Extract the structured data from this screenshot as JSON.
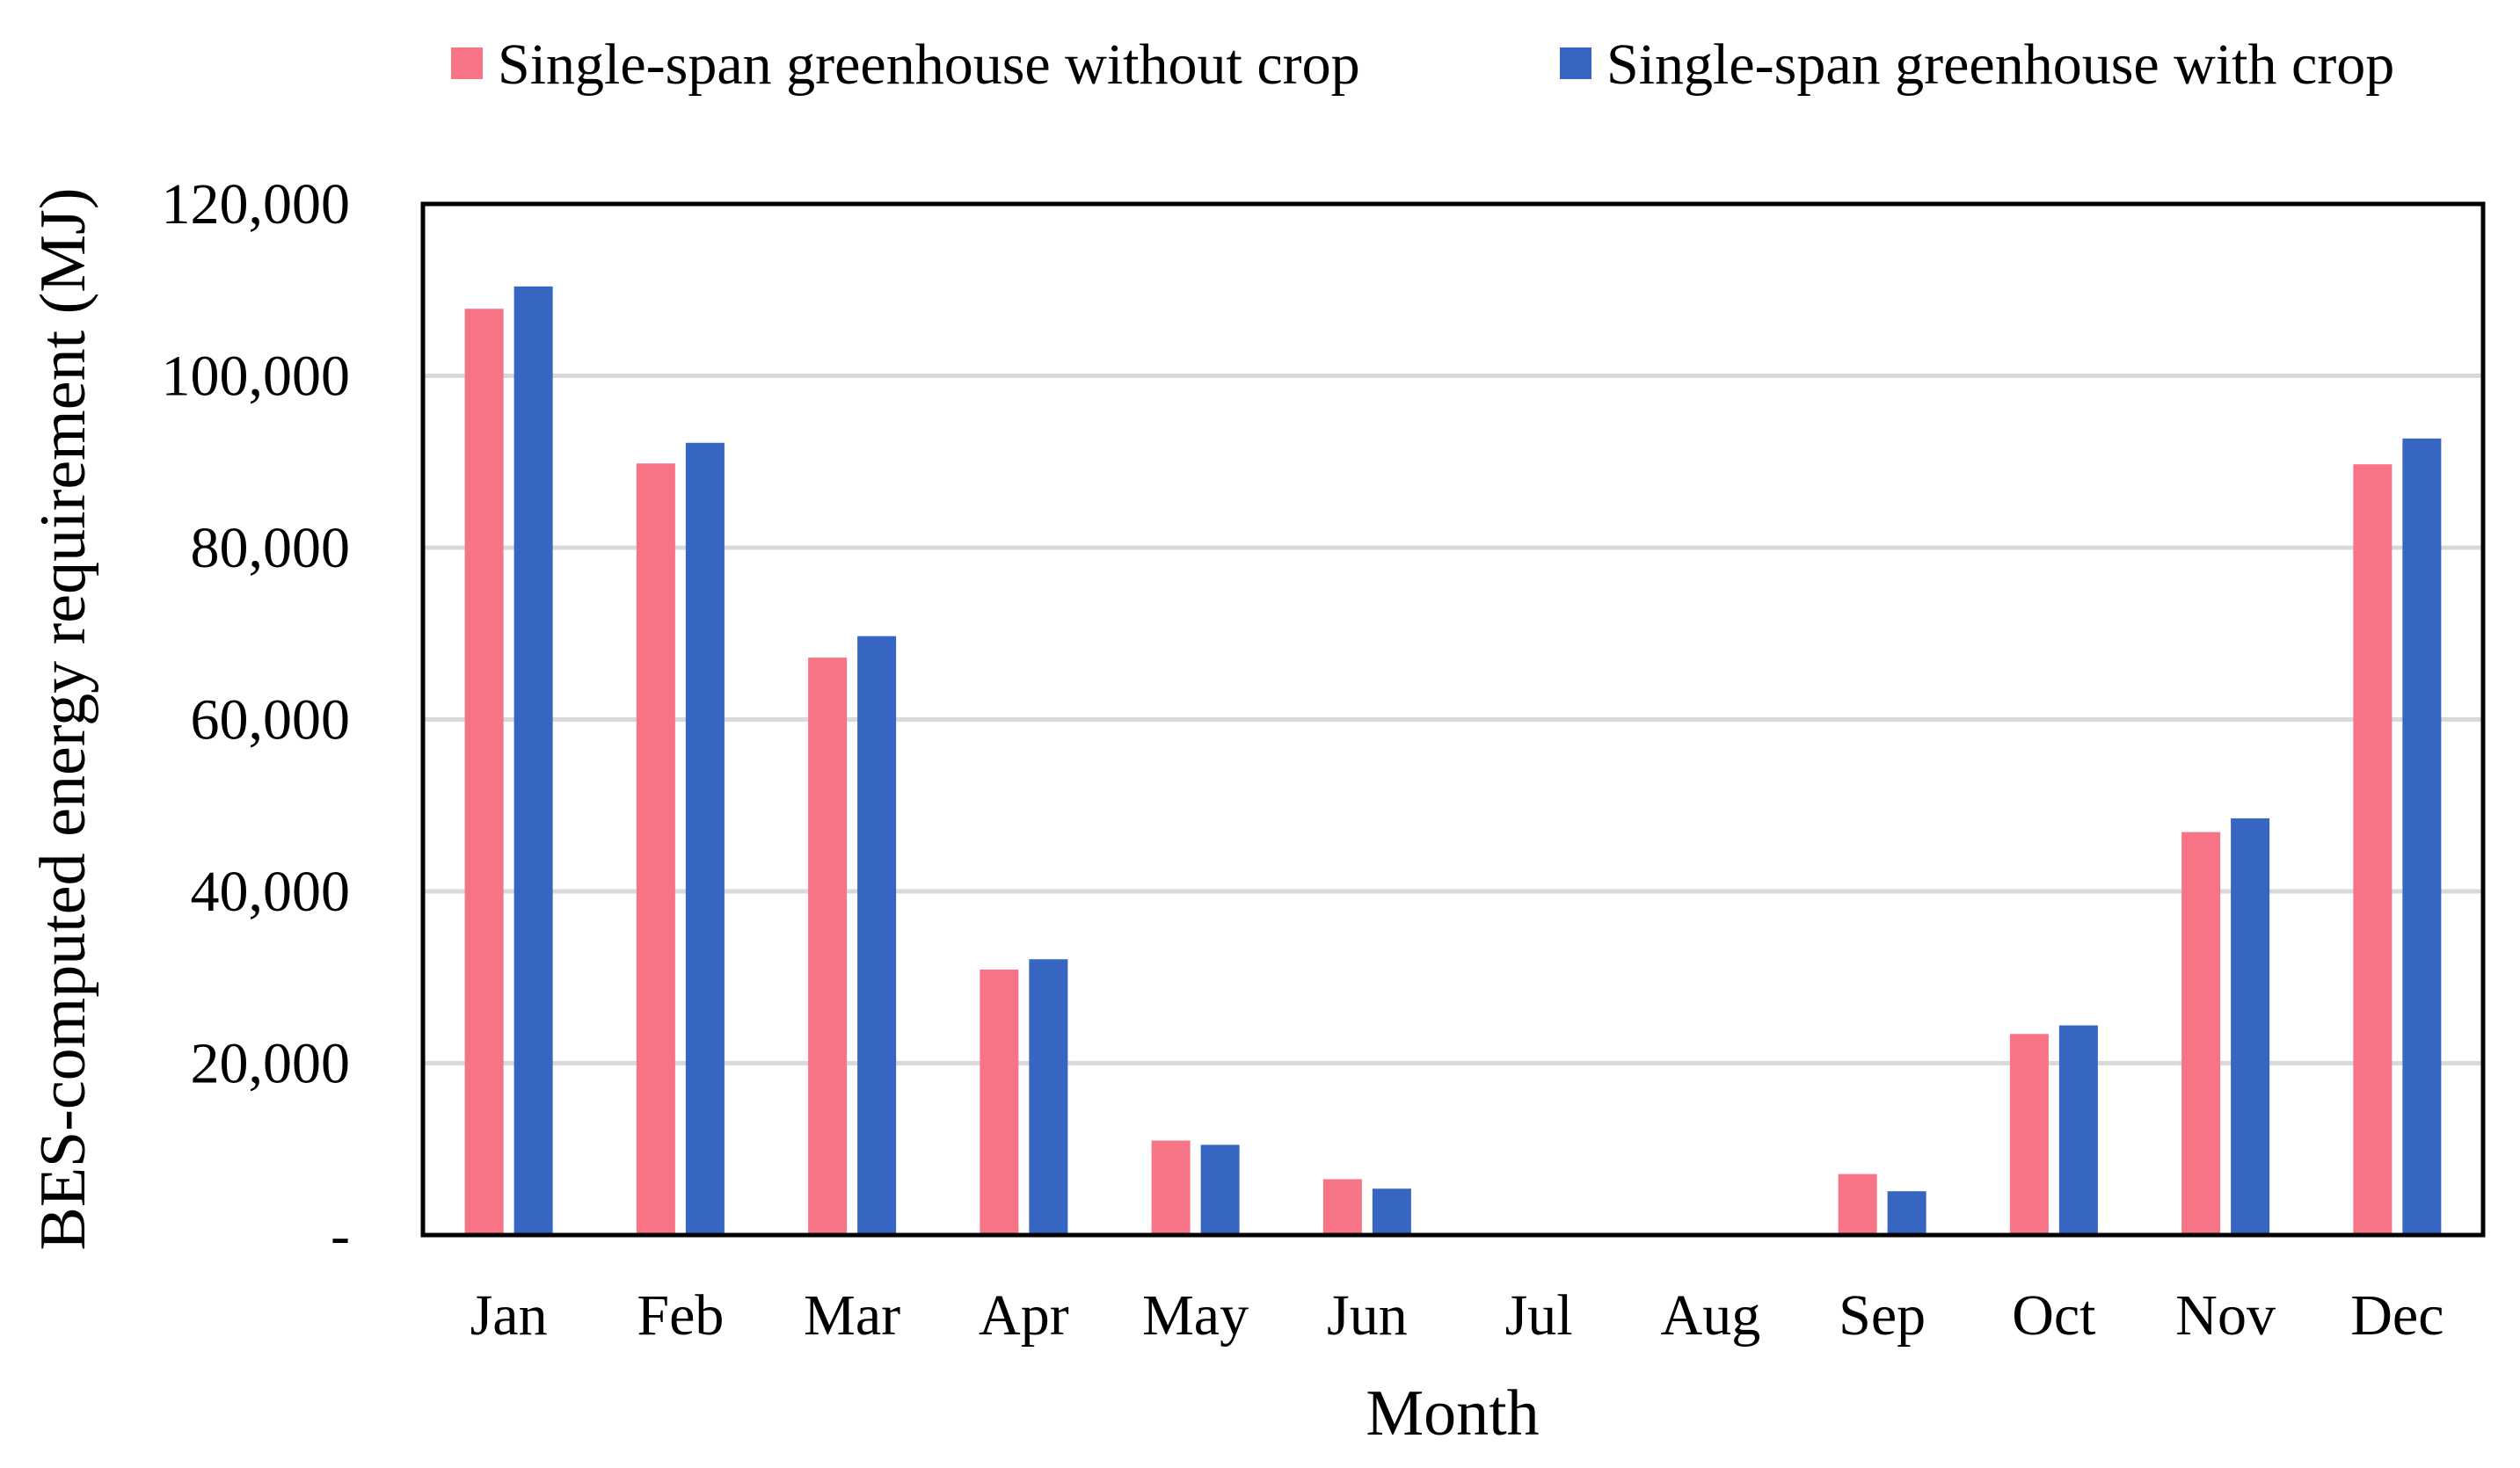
{
  "chart_data": {
    "type": "bar",
    "title": "",
    "xlabel": "Month",
    "ylabel": "BES-computed energy requirement (MJ)",
    "categories": [
      "Jan",
      "Feb",
      "Mar",
      "Apr",
      "May",
      "Jun",
      "Jul",
      "Aug",
      "Sep",
      "Oct",
      "Nov",
      "Dec"
    ],
    "series": [
      {
        "name": "Single-span greenhouse without crop",
        "color": "#F77386",
        "values": [
          107800,
          89800,
          67200,
          30900,
          11000,
          6500,
          0,
          0,
          7100,
          23400,
          46900,
          89700
        ]
      },
      {
        "name": "Single-span greenhouse with crop",
        "color": "#3765C2",
        "values": [
          110400,
          92200,
          69700,
          32100,
          10500,
          5400,
          0,
          0,
          5100,
          24400,
          48500,
          92700
        ]
      }
    ],
    "ylim": [
      0,
      120000
    ],
    "yticks": [
      0,
      20000,
      40000,
      60000,
      80000,
      100000,
      120000
    ],
    "ytick_labels": [
      "-",
      "20,000",
      "40,000",
      "60,000",
      "80,000",
      "100,000",
      "120,000"
    ],
    "grid": true,
    "gridline_color": "#D9D9D9",
    "legend_position": "top"
  }
}
